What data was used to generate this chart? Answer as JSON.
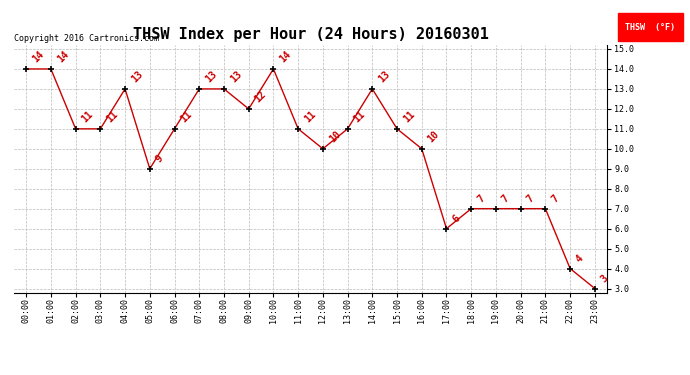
{
  "title": "THSW Index per Hour (24 Hours) 20160301",
  "copyright": "Copyright 2016 Cartronics.com",
  "legend_label": "THSW  (°F)",
  "hours": [
    0,
    1,
    2,
    3,
    4,
    5,
    6,
    7,
    8,
    9,
    10,
    11,
    12,
    13,
    14,
    15,
    16,
    17,
    18,
    19,
    20,
    21,
    22,
    23
  ],
  "values": [
    14,
    14,
    11,
    11,
    13,
    9,
    11,
    13,
    13,
    12,
    14,
    11,
    10,
    11,
    13,
    11,
    10,
    6,
    7,
    7,
    7,
    7,
    4,
    3
  ],
  "xlabels": [
    "00:00",
    "01:00",
    "02:00",
    "03:00",
    "04:00",
    "05:00",
    "06:00",
    "07:00",
    "08:00",
    "09:00",
    "10:00",
    "11:00",
    "12:00",
    "13:00",
    "14:00",
    "15:00",
    "16:00",
    "17:00",
    "18:00",
    "19:00",
    "20:00",
    "21:00",
    "22:00",
    "23:00"
  ],
  "ylim": [
    2.8,
    15.2
  ],
  "yticks": [
    3.0,
    4.0,
    5.0,
    6.0,
    7.0,
    8.0,
    9.0,
    10.0,
    11.0,
    12.0,
    13.0,
    14.0,
    15.0
  ],
  "line_color": "#cc0000",
  "bg_color": "#ffffff",
  "grid_color": "#bbbbbb",
  "title_fontsize": 11,
  "tick_fontsize": 6,
  "annotation_fontsize": 7,
  "copyright_fontsize": 6
}
